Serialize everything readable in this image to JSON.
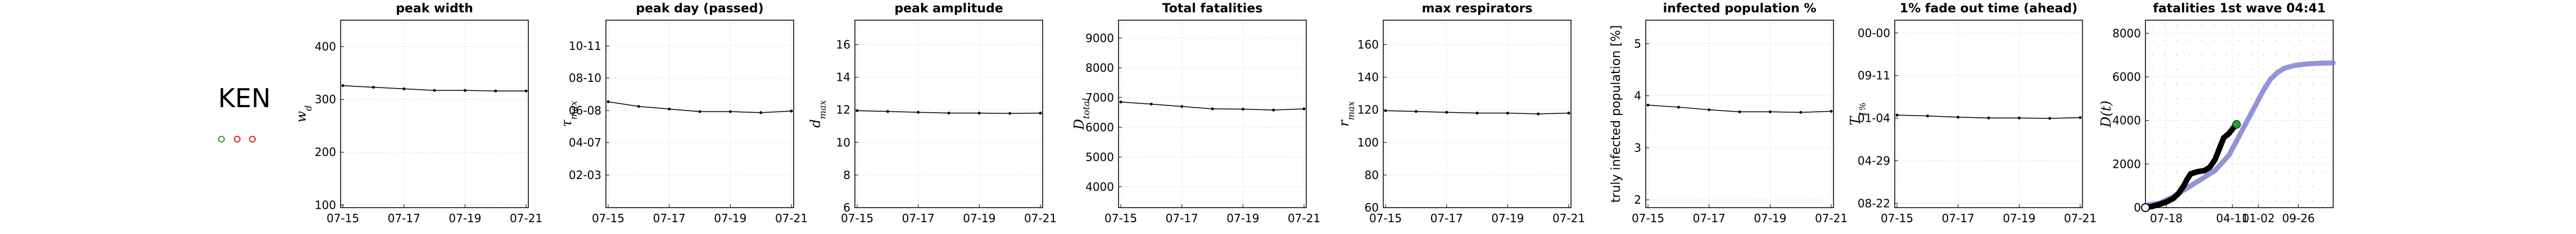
{
  "page": {
    "country": "KEN"
  },
  "status_markers": [
    {
      "color": "#2ca02c"
    },
    {
      "color": "#d62728"
    },
    {
      "color": "#d62728"
    }
  ],
  "chart_data": [
    {
      "type": "line",
      "title": "peak width",
      "ylabel_tex": "w_d",
      "x": [
        "07-15",
        "07-16",
        "07-17",
        "07-18",
        "07-19",
        "07-20",
        "07-21"
      ],
      "xticks": [
        "07-15",
        "07-17",
        "07-19",
        "07-21"
      ],
      "yticks": [
        "100",
        "200",
        "300",
        "400"
      ],
      "ylim": [
        95,
        450
      ],
      "values": [
        326,
        323,
        320,
        317,
        317,
        316,
        316
      ]
    },
    {
      "type": "line",
      "title": "peak day (passed)",
      "ylabel_tex": "τ_max",
      "x": [
        "07-15",
        "07-16",
        "07-17",
        "07-18",
        "07-19",
        "07-20",
        "07-21"
      ],
      "xticks": [
        "07-15",
        "07-17",
        "07-19",
        "07-21"
      ],
      "yticks": [
        "02-03",
        "04-07",
        "06-08",
        "08-10",
        "10-11"
      ],
      "y_axis": "date",
      "ylim": [
        "2020-12-02",
        "2021-11-30"
      ],
      "values": [
        "2021-06-25",
        "2021-06-16",
        "2021-06-11",
        "2021-06-06",
        "2021-06-06",
        "2021-06-04",
        "2021-06-07"
      ]
    },
    {
      "type": "line",
      "title": "peak amplitude",
      "ylabel_tex": "d_max",
      "x": [
        "07-15",
        "07-16",
        "07-17",
        "07-18",
        "07-19",
        "07-20",
        "07-21"
      ],
      "xticks": [
        "07-15",
        "07-17",
        "07-19",
        "07-21"
      ],
      "yticks": [
        "6",
        "8",
        "10",
        "12",
        "14",
        "16"
      ],
      "ylim": [
        6,
        17.5
      ],
      "values": [
        11.95,
        11.9,
        11.85,
        11.8,
        11.8,
        11.78,
        11.8
      ]
    },
    {
      "type": "line",
      "title": "Total fatalities",
      "ylabel_tex": "D_total",
      "x": [
        "07-15",
        "07-16",
        "07-17",
        "07-18",
        "07-19",
        "07-20",
        "07-21"
      ],
      "xticks": [
        "07-15",
        "07-17",
        "07-19",
        "07-21"
      ],
      "yticks": [
        "4000",
        "5000",
        "6000",
        "7000",
        "8000",
        "9000"
      ],
      "ylim": [
        3300,
        9600
      ],
      "values": [
        6850,
        6780,
        6700,
        6620,
        6610,
        6580,
        6620
      ]
    },
    {
      "type": "line",
      "title": "max respirators",
      "ylabel_tex": "r_max",
      "x": [
        "07-15",
        "07-16",
        "07-17",
        "07-18",
        "07-19",
        "07-20",
        "07-21"
      ],
      "xticks": [
        "07-15",
        "07-17",
        "07-19",
        "07-21"
      ],
      "yticks": [
        "60",
        "80",
        "100",
        "120",
        "140",
        "160"
      ],
      "ylim": [
        60,
        175
      ],
      "values": [
        119.5,
        119,
        118.5,
        118,
        118,
        117.5,
        118
      ]
    },
    {
      "type": "line",
      "title": "infected population %",
      "ylabel": "truly infected population [%]",
      "x": [
        "07-15",
        "07-16",
        "07-17",
        "07-18",
        "07-19",
        "07-20",
        "07-21"
      ],
      "xticks": [
        "07-15",
        "07-17",
        "07-19",
        "07-21"
      ],
      "yticks": [
        "2",
        "3",
        "4",
        "5"
      ],
      "ylim": [
        1.85,
        5.45
      ],
      "values": [
        3.82,
        3.78,
        3.73,
        3.69,
        3.69,
        3.68,
        3.7
      ]
    },
    {
      "type": "line",
      "title": "1% fade out time (ahead)",
      "ylabel_tex": "T_1%",
      "x": [
        "07-15",
        "07-16",
        "07-17",
        "07-18",
        "07-19",
        "07-20",
        "07-21"
      ],
      "xticks": [
        "07-15",
        "07-17",
        "07-19",
        "07-21"
      ],
      "yticks": [
        "08-22",
        "04-29",
        "01-04",
        "09-11",
        "00-00"
      ],
      "y_axis": "date-like labels",
      "ylim": [
        0,
        4.6
      ],
      "values": [
        2.27,
        2.25,
        2.22,
        2.2,
        2.2,
        2.19,
        2.21
      ]
    },
    {
      "type": "area",
      "title": "fatalities 1st wave 04:41",
      "ylabel_tex": "D(t)",
      "xticks": [
        "07-18",
        "04-11",
        "01-02",
        "09-26"
      ],
      "yticks": [
        "0",
        "2000",
        "4000",
        "6000",
        "8000"
      ],
      "ylim": [
        0,
        8600
      ],
      "xlim": [
        0,
        540
      ],
      "xtick_positions": [
        60,
        250,
        325,
        440
      ],
      "model_curve": {
        "color": "#8080d0",
        "points": [
          [
            0,
            100
          ],
          [
            40,
            200
          ],
          [
            80,
            500
          ],
          [
            120,
            900
          ],
          [
            160,
            1300
          ],
          [
            200,
            1700
          ],
          [
            240,
            2400
          ],
          [
            280,
            3600
          ],
          [
            300,
            4200
          ],
          [
            320,
            4800
          ],
          [
            340,
            5400
          ],
          [
            360,
            5900
          ],
          [
            380,
            6200
          ],
          [
            400,
            6400
          ],
          [
            430,
            6530
          ],
          [
            470,
            6600
          ],
          [
            510,
            6630
          ],
          [
            540,
            6640
          ]
        ]
      },
      "observed": {
        "color": "#000000",
        "points": [
          [
            0,
            0
          ],
          [
            20,
            60
          ],
          [
            40,
            150
          ],
          [
            60,
            260
          ],
          [
            80,
            420
          ],
          [
            95,
            650
          ],
          [
            110,
            1000
          ],
          [
            120,
            1300
          ],
          [
            130,
            1550
          ],
          [
            150,
            1650
          ],
          [
            170,
            1700
          ],
          [
            185,
            1850
          ],
          [
            200,
            2200
          ],
          [
            215,
            2800
          ],
          [
            225,
            3200
          ],
          [
            240,
            3400
          ],
          [
            250,
            3600
          ],
          [
            260,
            3800
          ]
        ]
      },
      "start_marker": {
        "x": 0,
        "y": 0
      },
      "latest_marker": {
        "x": 262,
        "y": 3820,
        "color": "#2ca02c"
      }
    }
  ]
}
